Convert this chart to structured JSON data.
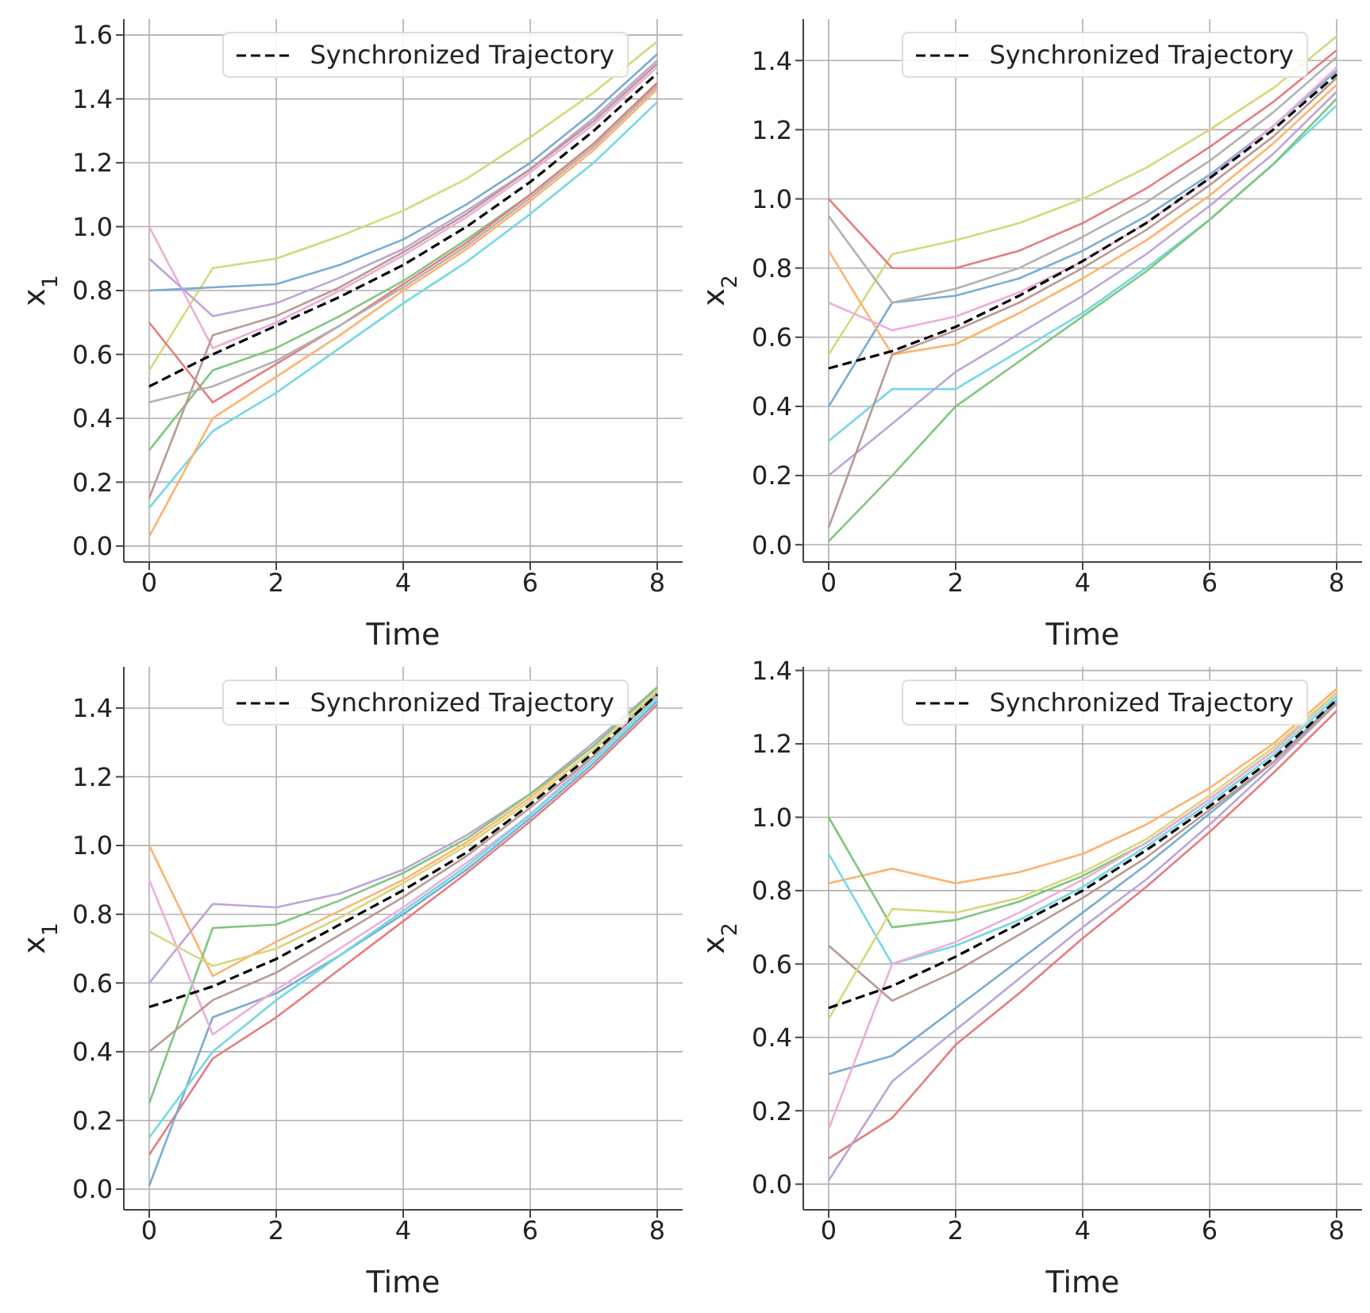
{
  "chart_data": [
    {
      "type": "line",
      "xlabel": "Time",
      "ylabel": "x$_{1}$",
      "x": [
        0,
        1,
        2,
        3,
        4,
        5,
        6,
        7,
        8
      ],
      "xlim": [
        -0.4,
        8.4
      ],
      "ylim": [
        -0.05,
        1.65
      ],
      "xticks": [
        0,
        2,
        4,
        6,
        8
      ],
      "yticks": [
        {
          "value": 0,
          "label": "0.0"
        },
        {
          "value": 0.2,
          "label": "0.2"
        },
        {
          "value": 0.4,
          "label": "0.4"
        },
        {
          "value": 0.6,
          "label": "0.6"
        },
        {
          "value": 0.8,
          "label": "0.8"
        },
        {
          "value": 1,
          "label": "1.0"
        },
        {
          "value": 1.2,
          "label": "1.2"
        },
        {
          "value": 1.4,
          "label": "1.4"
        },
        {
          "value": 1.6,
          "label": "1.6"
        }
      ],
      "grid": true,
      "legend": "top right",
      "marker": "none",
      "series": [
        {
          "color": "#d7d77a",
          "values": [
            0.55,
            0.87,
            0.9,
            0.97,
            1.05,
            1.15,
            1.28,
            1.42,
            1.58
          ]
        },
        {
          "color": "#74d8e2",
          "values": [
            0.12,
            0.36,
            0.48,
            0.62,
            0.76,
            0.89,
            1.04,
            1.2,
            1.39
          ]
        },
        {
          "color": "#eeadda",
          "values": [
            1.0,
            0.62,
            0.7,
            0.8,
            0.91,
            1.03,
            1.17,
            1.32,
            1.5
          ]
        },
        {
          "color": "#ffb26e",
          "values": [
            0.03,
            0.4,
            0.53,
            0.66,
            0.8,
            0.93,
            1.08,
            1.24,
            1.43
          ]
        },
        {
          "color": "#79add2",
          "values": [
            0.8,
            0.81,
            0.82,
            0.88,
            0.96,
            1.07,
            1.2,
            1.36,
            1.54
          ]
        },
        {
          "color": "#80c680",
          "values": [
            0.3,
            0.55,
            0.62,
            0.72,
            0.83,
            0.96,
            1.1,
            1.26,
            1.45
          ]
        },
        {
          "color": "#e67d7e",
          "values": [
            0.7,
            0.45,
            0.57,
            0.69,
            0.82,
            0.95,
            1.1,
            1.26,
            1.45
          ]
        },
        {
          "color": "#bfa4d7",
          "values": [
            0.9,
            0.72,
            0.76,
            0.84,
            0.93,
            1.05,
            1.18,
            1.34,
            1.52
          ]
        },
        {
          "color": "#ba9a93",
          "values": [
            0.15,
            0.66,
            0.72,
            0.81,
            0.92,
            1.04,
            1.18,
            1.33,
            1.51
          ]
        },
        {
          "color": "#b2b2b2",
          "values": [
            0.45,
            0.5,
            0.58,
            0.69,
            0.81,
            0.94,
            1.09,
            1.25,
            1.44
          ]
        },
        {
          "name": "Synchronized Trajectory",
          "color": "#000000",
          "line_style": "dashed",
          "values": [
            0.5,
            0.6,
            0.69,
            0.78,
            0.88,
            1.0,
            1.14,
            1.3,
            1.48
          ]
        }
      ]
    },
    {
      "type": "line",
      "xlabel": "Time",
      "ylabel": "x$_{2}$",
      "x": [
        0,
        1,
        2,
        3,
        4,
        5,
        6,
        7,
        8
      ],
      "xlim": [
        -0.4,
        8.4
      ],
      "ylim": [
        -0.05,
        1.52
      ],
      "xticks": [
        0,
        2,
        4,
        6,
        8
      ],
      "yticks": [
        {
          "value": 0,
          "label": "0.0"
        },
        {
          "value": 0.2,
          "label": "0.2"
        },
        {
          "value": 0.4,
          "label": "0.4"
        },
        {
          "value": 0.6,
          "label": "0.6"
        },
        {
          "value": 0.8,
          "label": "0.8"
        },
        {
          "value": 1,
          "label": "1.0"
        },
        {
          "value": 1.2,
          "label": "1.2"
        },
        {
          "value": 1.4,
          "label": "1.4"
        }
      ],
      "grid": true,
      "legend": "top right",
      "marker": "none",
      "series": [
        {
          "color": "#d7d77a",
          "values": [
            0.55,
            0.84,
            0.88,
            0.93,
            1.0,
            1.09,
            1.2,
            1.32,
            1.47
          ]
        },
        {
          "color": "#74d8e2",
          "values": [
            0.3,
            0.45,
            0.45,
            0.56,
            0.67,
            0.8,
            0.94,
            1.1,
            1.27
          ]
        },
        {
          "color": "#e67d7e",
          "values": [
            1.0,
            0.8,
            0.8,
            0.85,
            0.93,
            1.03,
            1.15,
            1.28,
            1.43
          ]
        },
        {
          "color": "#80c680",
          "values": [
            0.01,
            0.2,
            0.4,
            0.53,
            0.66,
            0.79,
            0.94,
            1.1,
            1.29
          ]
        },
        {
          "color": "#79add2",
          "values": [
            0.4,
            0.7,
            0.72,
            0.77,
            0.85,
            0.95,
            1.07,
            1.21,
            1.37
          ]
        },
        {
          "color": "#ffb26e",
          "values": [
            0.85,
            0.55,
            0.58,
            0.67,
            0.77,
            0.88,
            1.01,
            1.16,
            1.33
          ]
        },
        {
          "color": "#bfa4d7",
          "values": [
            0.2,
            0.35,
            0.5,
            0.61,
            0.72,
            0.84,
            0.98,
            1.13,
            1.31
          ]
        },
        {
          "color": "#eeadda",
          "values": [
            0.7,
            0.62,
            0.66,
            0.73,
            0.82,
            0.93,
            1.06,
            1.21,
            1.38
          ]
        },
        {
          "color": "#ba9a93",
          "values": [
            0.05,
            0.55,
            0.62,
            0.7,
            0.8,
            0.91,
            1.04,
            1.18,
            1.35
          ]
        },
        {
          "color": "#b2b2b2",
          "values": [
            0.95,
            0.7,
            0.74,
            0.8,
            0.89,
            0.99,
            1.11,
            1.25,
            1.41
          ]
        },
        {
          "name": "Synchronized Trajectory",
          "color": "#000000",
          "line_style": "dashed",
          "values": [
            0.51,
            0.56,
            0.63,
            0.72,
            0.82,
            0.93,
            1.06,
            1.2,
            1.36
          ]
        }
      ]
    },
    {
      "type": "line",
      "xlabel": "Time",
      "ylabel": "x$_{1}$",
      "x": [
        0,
        1,
        2,
        3,
        4,
        5,
        6,
        7,
        8
      ],
      "xlim": [
        -0.4,
        8.4
      ],
      "ylim": [
        -0.06,
        1.52
      ],
      "xticks": [
        0,
        2,
        4,
        6,
        8
      ],
      "yticks": [
        {
          "value": 0,
          "label": "0.0"
        },
        {
          "value": 0.2,
          "label": "0.2"
        },
        {
          "value": 0.4,
          "label": "0.4"
        },
        {
          "value": 0.6,
          "label": "0.6"
        },
        {
          "value": 0.8,
          "label": "0.8"
        },
        {
          "value": 1,
          "label": "1.0"
        },
        {
          "value": 1.2,
          "label": "1.2"
        },
        {
          "value": 1.4,
          "label": "1.4"
        }
      ],
      "grid": true,
      "legend": "top right",
      "marker": "none",
      "series": [
        {
          "color": "#e67d7e",
          "values": [
            0.1,
            0.38,
            0.5,
            0.64,
            0.78,
            0.92,
            1.07,
            1.23,
            1.41
          ]
        },
        {
          "color": "#ffb26e",
          "values": [
            1.0,
            0.62,
            0.72,
            0.81,
            0.9,
            1.01,
            1.14,
            1.29,
            1.46
          ]
        },
        {
          "color": "#79add2",
          "values": [
            0.01,
            0.5,
            0.57,
            0.68,
            0.8,
            0.93,
            1.08,
            1.24,
            1.42
          ]
        },
        {
          "color": "#bfa4d7",
          "values": [
            0.6,
            0.83,
            0.82,
            0.86,
            0.93,
            1.03,
            1.15,
            1.3,
            1.46
          ]
        },
        {
          "color": "#80c680",
          "values": [
            0.25,
            0.76,
            0.77,
            0.84,
            0.92,
            1.02,
            1.15,
            1.29,
            1.46
          ]
        },
        {
          "color": "#eeadda",
          "values": [
            0.9,
            0.45,
            0.58,
            0.7,
            0.82,
            0.95,
            1.09,
            1.26,
            1.45
          ]
        },
        {
          "color": "#74d8e2",
          "values": [
            0.15,
            0.4,
            0.55,
            0.68,
            0.81,
            0.94,
            1.09,
            1.25,
            1.43
          ]
        },
        {
          "color": "#d7d77a",
          "values": [
            0.75,
            0.65,
            0.7,
            0.79,
            0.89,
            1.0,
            1.13,
            1.28,
            1.45
          ]
        },
        {
          "color": "#ba9a93",
          "values": [
            0.4,
            0.55,
            0.63,
            0.74,
            0.85,
            0.97,
            1.11,
            1.26,
            1.44
          ]
        },
        {
          "name": "Synchronized Trajectory",
          "color": "#000000",
          "line_style": "dashed",
          "values": [
            0.53,
            0.59,
            0.67,
            0.77,
            0.87,
            0.98,
            1.12,
            1.27,
            1.44
          ]
        }
      ]
    },
    {
      "type": "line",
      "xlabel": "Time",
      "ylabel": "x$_{2}$",
      "x": [
        0,
        1,
        2,
        3,
        4,
        5,
        6,
        7,
        8
      ],
      "xlim": [
        -0.4,
        8.4
      ],
      "ylim": [
        -0.07,
        1.41
      ],
      "xticks": [
        0,
        2,
        4,
        6,
        8
      ],
      "yticks": [
        {
          "value": 0,
          "label": "0.0"
        },
        {
          "value": 0.2,
          "label": "0.2"
        },
        {
          "value": 0.4,
          "label": "0.4"
        },
        {
          "value": 0.6,
          "label": "0.6"
        },
        {
          "value": 0.8,
          "label": "0.8"
        },
        {
          "value": 1,
          "label": "1.0"
        },
        {
          "value": 1.2,
          "label": "1.2"
        },
        {
          "value": 1.4,
          "label": "1.4"
        }
      ],
      "grid": true,
      "legend": "top right",
      "marker": "none",
      "series": [
        {
          "color": "#e67d7e",
          "values": [
            0.07,
            0.18,
            0.38,
            0.52,
            0.67,
            0.81,
            0.96,
            1.12,
            1.29
          ]
        },
        {
          "color": "#ffb26e",
          "values": [
            0.82,
            0.86,
            0.82,
            0.85,
            0.9,
            0.98,
            1.08,
            1.2,
            1.35
          ]
        },
        {
          "color": "#80c680",
          "values": [
            1.0,
            0.7,
            0.72,
            0.77,
            0.84,
            0.93,
            1.05,
            1.18,
            1.34
          ]
        },
        {
          "color": "#bfa4d7",
          "values": [
            0.01,
            0.28,
            0.42,
            0.56,
            0.7,
            0.83,
            0.98,
            1.14,
            1.31
          ]
        },
        {
          "color": "#74d8e2",
          "values": [
            0.9,
            0.6,
            0.65,
            0.72,
            0.81,
            0.92,
            1.04,
            1.17,
            1.33
          ]
        },
        {
          "color": "#79add2",
          "values": [
            0.3,
            0.35,
            0.48,
            0.61,
            0.74,
            0.87,
            1.01,
            1.15,
            1.32
          ]
        },
        {
          "color": "#eeadda",
          "values": [
            0.15,
            0.6,
            0.66,
            0.74,
            0.83,
            0.93,
            1.05,
            1.18,
            1.34
          ]
        },
        {
          "color": "#ba9a93",
          "values": [
            0.65,
            0.5,
            0.58,
            0.68,
            0.78,
            0.89,
            1.02,
            1.15,
            1.31
          ]
        },
        {
          "color": "#d7d77a",
          "values": [
            0.45,
            0.75,
            0.74,
            0.78,
            0.85,
            0.94,
            1.06,
            1.19,
            1.34
          ]
        },
        {
          "name": "Synchronized Trajectory",
          "color": "#000000",
          "line_style": "dashed",
          "values": [
            0.48,
            0.54,
            0.62,
            0.71,
            0.8,
            0.91,
            1.03,
            1.16,
            1.32
          ]
        }
      ]
    }
  ]
}
